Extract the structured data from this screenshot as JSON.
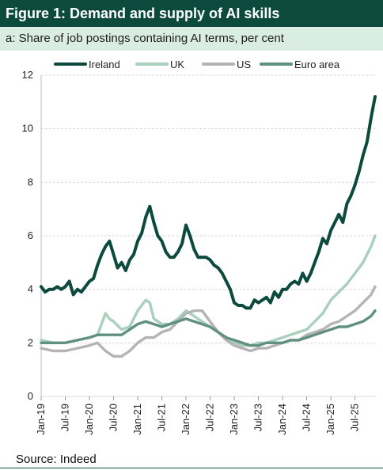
{
  "title": "Figure 1: Demand and supply of AI skills",
  "subtitle": "a: Share of job postings containing AI terms, per cent",
  "source": "Source: Indeed",
  "chart_data": {
    "type": "line",
    "ylim": [
      0,
      12
    ],
    "yticks": [
      0,
      2,
      4,
      6,
      8,
      10,
      12
    ],
    "xlim": [
      "2019-01",
      "2025-12"
    ],
    "xticks": [
      "Jan-19",
      "Jul-19",
      "Jan-20",
      "Jul-20",
      "Jan-21",
      "Jul-21",
      "Jan-22",
      "Jul-22",
      "Jan-23",
      "Jul-23",
      "Jan-24",
      "Jul-24",
      "Jan-25",
      "Jul-25"
    ],
    "grid": true,
    "legend_position": "top",
    "series": [
      {
        "name": "Ireland",
        "color": "#0d4a3e",
        "width": 4.0,
        "points": [
          [
            "2019-01",
            4.1
          ],
          [
            "2019-02",
            3.9
          ],
          [
            "2019-03",
            4.0
          ],
          [
            "2019-04",
            4.0
          ],
          [
            "2019-05",
            4.1
          ],
          [
            "2019-06",
            4.0
          ],
          [
            "2019-07",
            4.1
          ],
          [
            "2019-08",
            4.3
          ],
          [
            "2019-09",
            3.8
          ],
          [
            "2019-10",
            4.0
          ],
          [
            "2019-11",
            3.9
          ],
          [
            "2019-12",
            4.1
          ],
          [
            "2020-01",
            4.3
          ],
          [
            "2020-02",
            4.4
          ],
          [
            "2020-03",
            4.9
          ],
          [
            "2020-04",
            5.3
          ],
          [
            "2020-05",
            5.6
          ],
          [
            "2020-06",
            5.8
          ],
          [
            "2020-07",
            5.3
          ],
          [
            "2020-08",
            4.8
          ],
          [
            "2020-09",
            5.0
          ],
          [
            "2020-10",
            4.7
          ],
          [
            "2020-11",
            5.1
          ],
          [
            "2020-12",
            5.3
          ],
          [
            "2021-01",
            5.8
          ],
          [
            "2021-02",
            6.1
          ],
          [
            "2021-03",
            6.7
          ],
          [
            "2021-04",
            7.1
          ],
          [
            "2021-05",
            6.5
          ],
          [
            "2021-06",
            6.0
          ],
          [
            "2021-07",
            5.8
          ],
          [
            "2021-08",
            5.4
          ],
          [
            "2021-09",
            5.2
          ],
          [
            "2021-10",
            5.2
          ],
          [
            "2021-11",
            5.4
          ],
          [
            "2021-12",
            5.7
          ],
          [
            "2022-01",
            6.4
          ],
          [
            "2022-02",
            6.0
          ],
          [
            "2022-03",
            5.5
          ],
          [
            "2022-04",
            5.2
          ],
          [
            "2022-05",
            5.2
          ],
          [
            "2022-06",
            5.2
          ],
          [
            "2022-07",
            5.1
          ],
          [
            "2022-08",
            4.9
          ],
          [
            "2022-09",
            4.8
          ],
          [
            "2022-10",
            4.6
          ],
          [
            "2022-11",
            4.3
          ],
          [
            "2022-12",
            4.0
          ],
          [
            "2023-01",
            3.5
          ],
          [
            "2023-02",
            3.4
          ],
          [
            "2023-03",
            3.4
          ],
          [
            "2023-04",
            3.3
          ],
          [
            "2023-05",
            3.3
          ],
          [
            "2023-06",
            3.6
          ],
          [
            "2023-07",
            3.5
          ],
          [
            "2023-08",
            3.6
          ],
          [
            "2023-09",
            3.7
          ],
          [
            "2023-10",
            3.5
          ],
          [
            "2023-11",
            3.9
          ],
          [
            "2023-12",
            3.7
          ],
          [
            "2024-01",
            4.0
          ],
          [
            "2024-02",
            4.0
          ],
          [
            "2024-03",
            4.2
          ],
          [
            "2024-04",
            4.3
          ],
          [
            "2024-05",
            4.2
          ],
          [
            "2024-06",
            4.6
          ],
          [
            "2024-07",
            4.3
          ],
          [
            "2024-08",
            4.6
          ],
          [
            "2024-09",
            5.0
          ],
          [
            "2024-10",
            5.4
          ],
          [
            "2024-11",
            5.9
          ],
          [
            "2024-12",
            5.7
          ],
          [
            "2025-01",
            6.2
          ],
          [
            "2025-02",
            6.5
          ],
          [
            "2025-03",
            6.8
          ],
          [
            "2025-04",
            6.5
          ],
          [
            "2025-05",
            7.2
          ],
          [
            "2025-06",
            7.5
          ],
          [
            "2025-07",
            7.9
          ],
          [
            "2025-08",
            8.4
          ],
          [
            "2025-09",
            9.0
          ],
          [
            "2025-10",
            9.5
          ],
          [
            "2025-11",
            10.4
          ],
          [
            "2025-12",
            11.2
          ]
        ]
      },
      {
        "name": "UK",
        "color": "#a8d0bc",
        "width": 3.4,
        "points": [
          [
            "2019-01",
            2.1
          ],
          [
            "2019-04",
            2.0
          ],
          [
            "2019-07",
            2.0
          ],
          [
            "2019-10",
            2.1
          ],
          [
            "2020-01",
            2.2
          ],
          [
            "2020-03",
            2.3
          ],
          [
            "2020-05",
            3.1
          ],
          [
            "2020-06",
            2.9
          ],
          [
            "2020-07",
            2.8
          ],
          [
            "2020-09",
            2.5
          ],
          [
            "2020-11",
            2.6
          ],
          [
            "2021-01",
            3.2
          ],
          [
            "2021-03",
            3.6
          ],
          [
            "2021-04",
            3.5
          ],
          [
            "2021-05",
            2.9
          ],
          [
            "2021-07",
            2.7
          ],
          [
            "2021-09",
            2.7
          ],
          [
            "2021-11",
            2.9
          ],
          [
            "2022-01",
            3.2
          ],
          [
            "2022-03",
            3.0
          ],
          [
            "2022-05",
            2.8
          ],
          [
            "2022-07",
            2.6
          ],
          [
            "2022-09",
            2.4
          ],
          [
            "2022-11",
            2.2
          ],
          [
            "2023-01",
            2.0
          ],
          [
            "2023-03",
            1.9
          ],
          [
            "2023-05",
            1.9
          ],
          [
            "2023-07",
            2.0
          ],
          [
            "2023-09",
            2.0
          ],
          [
            "2023-11",
            2.1
          ],
          [
            "2024-01",
            2.2
          ],
          [
            "2024-03",
            2.3
          ],
          [
            "2024-05",
            2.4
          ],
          [
            "2024-07",
            2.5
          ],
          [
            "2024-09",
            2.8
          ],
          [
            "2024-11",
            3.1
          ],
          [
            "2025-01",
            3.6
          ],
          [
            "2025-03",
            3.9
          ],
          [
            "2025-05",
            4.2
          ],
          [
            "2025-07",
            4.6
          ],
          [
            "2025-09",
            5.0
          ],
          [
            "2025-11",
            5.6
          ],
          [
            "2025-12",
            6.0
          ]
        ]
      },
      {
        "name": "US",
        "color": "#b6b3b8",
        "width": 3.4,
        "points": [
          [
            "2019-01",
            1.8
          ],
          [
            "2019-04",
            1.7
          ],
          [
            "2019-07",
            1.7
          ],
          [
            "2019-10",
            1.8
          ],
          [
            "2020-01",
            1.9
          ],
          [
            "2020-03",
            2.0
          ],
          [
            "2020-05",
            1.7
          ],
          [
            "2020-07",
            1.5
          ],
          [
            "2020-09",
            1.5
          ],
          [
            "2020-11",
            1.7
          ],
          [
            "2021-01",
            2.0
          ],
          [
            "2021-03",
            2.2
          ],
          [
            "2021-05",
            2.2
          ],
          [
            "2021-07",
            2.4
          ],
          [
            "2021-09",
            2.5
          ],
          [
            "2021-11",
            2.8
          ],
          [
            "2022-01",
            3.1
          ],
          [
            "2022-03",
            3.2
          ],
          [
            "2022-05",
            3.2
          ],
          [
            "2022-07",
            2.8
          ],
          [
            "2022-09",
            2.4
          ],
          [
            "2022-11",
            2.1
          ],
          [
            "2023-01",
            1.9
          ],
          [
            "2023-03",
            1.8
          ],
          [
            "2023-05",
            1.7
          ],
          [
            "2023-07",
            1.8
          ],
          [
            "2023-09",
            1.8
          ],
          [
            "2023-11",
            1.9
          ],
          [
            "2024-01",
            2.0
          ],
          [
            "2024-03",
            2.1
          ],
          [
            "2024-05",
            2.1
          ],
          [
            "2024-07",
            2.3
          ],
          [
            "2024-09",
            2.4
          ],
          [
            "2024-11",
            2.5
          ],
          [
            "2025-01",
            2.7
          ],
          [
            "2025-03",
            2.8
          ],
          [
            "2025-05",
            3.0
          ],
          [
            "2025-07",
            3.2
          ],
          [
            "2025-09",
            3.5
          ],
          [
            "2025-11",
            3.8
          ],
          [
            "2025-12",
            4.1
          ]
        ]
      },
      {
        "name": "Euro area",
        "color": "#5f9080",
        "width": 3.4,
        "points": [
          [
            "2019-01",
            2.0
          ],
          [
            "2019-04",
            2.0
          ],
          [
            "2019-07",
            2.0
          ],
          [
            "2019-10",
            2.1
          ],
          [
            "2020-01",
            2.2
          ],
          [
            "2020-03",
            2.3
          ],
          [
            "2020-05",
            2.3
          ],
          [
            "2020-07",
            2.3
          ],
          [
            "2020-09",
            2.3
          ],
          [
            "2020-11",
            2.5
          ],
          [
            "2021-01",
            2.7
          ],
          [
            "2021-03",
            2.8
          ],
          [
            "2021-05",
            2.7
          ],
          [
            "2021-07",
            2.6
          ],
          [
            "2021-09",
            2.7
          ],
          [
            "2021-11",
            2.8
          ],
          [
            "2022-01",
            2.9
          ],
          [
            "2022-03",
            2.8
          ],
          [
            "2022-05",
            2.7
          ],
          [
            "2022-07",
            2.6
          ],
          [
            "2022-09",
            2.4
          ],
          [
            "2022-11",
            2.2
          ],
          [
            "2023-01",
            2.1
          ],
          [
            "2023-03",
            2.0
          ],
          [
            "2023-05",
            1.9
          ],
          [
            "2023-07",
            1.9
          ],
          [
            "2023-09",
            2.0
          ],
          [
            "2023-11",
            2.0
          ],
          [
            "2024-01",
            2.0
          ],
          [
            "2024-03",
            2.1
          ],
          [
            "2024-05",
            2.1
          ],
          [
            "2024-07",
            2.2
          ],
          [
            "2024-09",
            2.3
          ],
          [
            "2024-11",
            2.4
          ],
          [
            "2025-01",
            2.5
          ],
          [
            "2025-03",
            2.6
          ],
          [
            "2025-05",
            2.6
          ],
          [
            "2025-07",
            2.7
          ],
          [
            "2025-09",
            2.8
          ],
          [
            "2025-11",
            3.0
          ],
          [
            "2025-12",
            3.2
          ]
        ]
      }
    ]
  }
}
